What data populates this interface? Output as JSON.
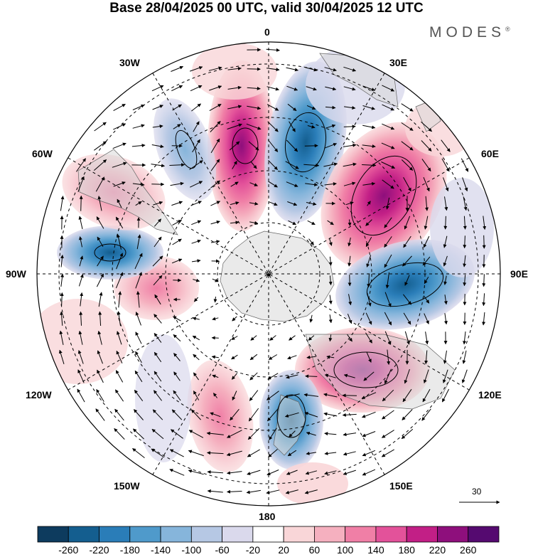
{
  "title": "Base 28/04/2025 00 UTC, valid 30/04/2025 12 UTC",
  "brand": "MODES",
  "brand_mark": "®",
  "longitude_labels": {
    "lon_0": "0",
    "lon_30e": "30E",
    "lon_60e": "60E",
    "lon_90e": "90E",
    "lon_120e": "120E",
    "lon_150e": "150E",
    "lon_180": "180",
    "lon_150w": "150W",
    "lon_120w": "120W",
    "lon_90w": "90W",
    "lon_60w": "60W",
    "lon_30w": "30W"
  },
  "reference_vector": "30",
  "colorbar": {
    "labels": [
      "-260",
      "-220",
      "-180",
      "-140",
      "-100",
      "-60",
      "-20",
      "20",
      "60",
      "100",
      "140",
      "180",
      "220",
      "260"
    ],
    "colors": [
      "#0d3b5e",
      "#145e8f",
      "#2a7db8",
      "#4f9acb",
      "#86b5db",
      "#b6c8e4",
      "#dad9ec",
      "#ffffff",
      "#f9d6d8",
      "#f5b0bf",
      "#f07fa6",
      "#e3529a",
      "#c21f86",
      "#8e0f7c",
      "#550a70"
    ]
  },
  "colors": {
    "land": "#d9d9d9",
    "grid": "#000000",
    "neg_strong": "#145e8f",
    "pos_strong": "#c21f86"
  }
}
